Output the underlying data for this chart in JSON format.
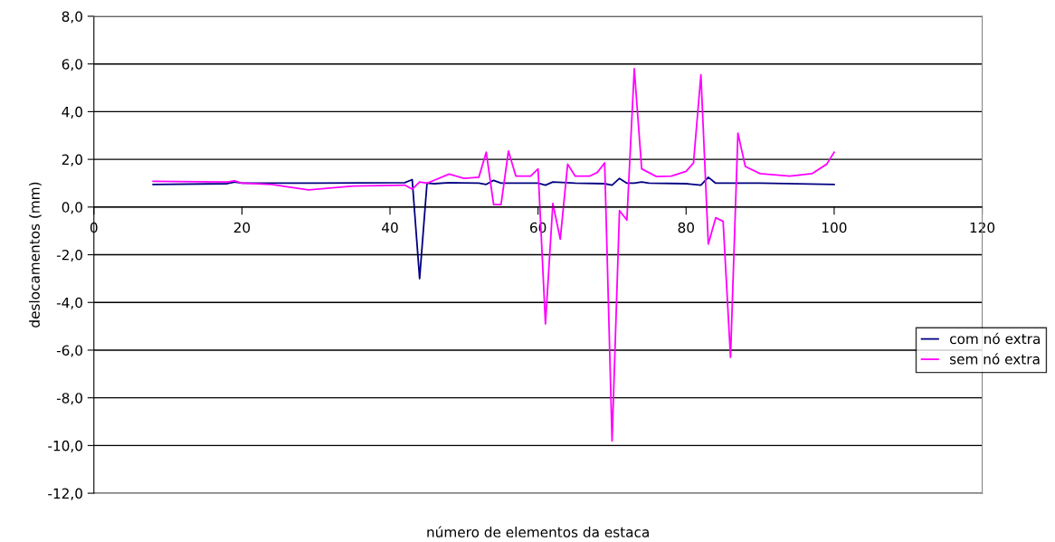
{
  "chart_data": {
    "type": "line",
    "xlabel": "número de elementos da estaca",
    "ylabel": "deslocamentos (mm)",
    "xlim": [
      0,
      120
    ],
    "xticks": [
      0,
      20,
      40,
      60,
      80,
      100,
      120
    ],
    "ylim": [
      -12,
      8
    ],
    "yticks": [
      {
        "value": -12,
        "label": "-12,0"
      },
      {
        "value": -10,
        "label": "-10,0"
      },
      {
        "value": -8,
        "label": "-8,0"
      },
      {
        "value": -6,
        "label": "-6,0"
      },
      {
        "value": -4,
        "label": "-4,0"
      },
      {
        "value": -2,
        "label": "-2,0"
      },
      {
        "value": 0,
        "label": "0,0"
      },
      {
        "value": 2,
        "label": "2,0"
      },
      {
        "value": 4,
        "label": "4,0"
      },
      {
        "value": 6,
        "label": "6,0"
      },
      {
        "value": 8,
        "label": "8,0"
      }
    ],
    "grid": "y",
    "legend": "right",
    "marker": "none",
    "line_style": "solid",
    "series": [
      {
        "name": "com nó extra",
        "color": "#000080",
        "x": [
          8,
          18,
          19,
          20,
          30,
          42,
          43,
          44,
          45,
          46,
          48,
          52,
          53,
          54,
          55,
          60,
          61,
          62,
          65,
          69,
          70,
          71,
          72,
          73,
          74,
          75,
          80,
          82,
          83,
          84,
          85,
          90,
          100
        ],
        "values": [
          0.95,
          0.98,
          1.05,
          1.0,
          1.0,
          1.02,
          1.15,
          -3.0,
          1.0,
          0.98,
          1.02,
          1.0,
          0.95,
          1.12,
          1.0,
          1.0,
          0.92,
          1.05,
          1.0,
          0.98,
          0.92,
          1.2,
          1.0,
          1.0,
          1.05,
          1.0,
          0.98,
          0.92,
          1.25,
          1.0,
          1.0,
          1.0,
          0.95
        ]
      },
      {
        "name": "sem nó extra",
        "color": "#ff00ff",
        "x": [
          8,
          18,
          19,
          20,
          24,
          29,
          35,
          42,
          43,
          44,
          45,
          48,
          50,
          52,
          53,
          54,
          55,
          56,
          57,
          59,
          60,
          61,
          62,
          63,
          64,
          65,
          67,
          68,
          69,
          70,
          71,
          72,
          73,
          74,
          76,
          78,
          80,
          81,
          82,
          83,
          84,
          85,
          86,
          87,
          88,
          90,
          94,
          97,
          99,
          100
        ],
        "values": [
          1.08,
          1.05,
          1.1,
          1.0,
          0.95,
          0.72,
          0.88,
          0.92,
          0.75,
          1.05,
          1.0,
          1.38,
          1.2,
          1.25,
          2.3,
          0.1,
          0.1,
          2.35,
          1.3,
          1.3,
          1.6,
          -4.9,
          0.15,
          -1.35,
          1.8,
          1.3,
          1.3,
          1.45,
          1.85,
          -9.8,
          -0.15,
          -0.55,
          5.8,
          1.6,
          1.28,
          1.3,
          1.5,
          1.85,
          5.55,
          -1.55,
          -0.45,
          -0.6,
          -6.3,
          3.1,
          1.7,
          1.4,
          1.3,
          1.4,
          1.8,
          2.3
        ]
      }
    ]
  }
}
